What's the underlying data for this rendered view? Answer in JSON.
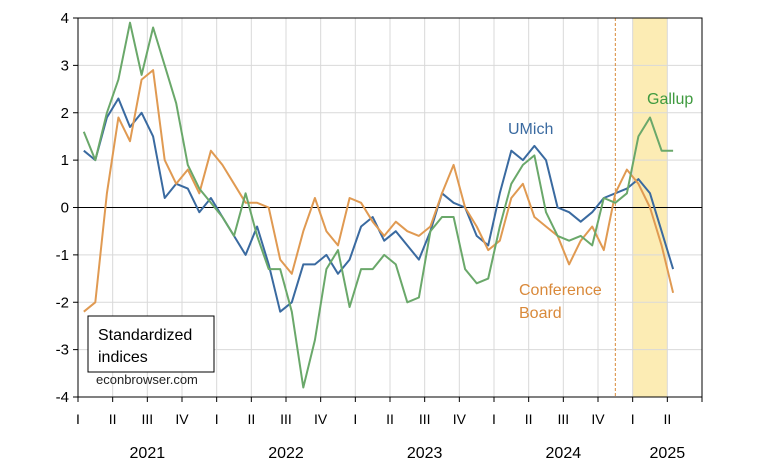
{
  "chart_data": {
    "type": "line",
    "x_unit": "month",
    "x_start": "2021-01",
    "ylim": [
      -4,
      4
    ],
    "yticks": [
      "4",
      "3",
      "2",
      "1",
      "0",
      "-1",
      "-2",
      "-3",
      "-4"
    ],
    "quarter_labels": [
      "I",
      "II",
      "III",
      "IV",
      "I",
      "II",
      "III",
      "IV",
      "I",
      "II",
      "III",
      "IV",
      "I",
      "II",
      "III",
      "IV",
      "I",
      "II"
    ],
    "year_labels": [
      "2021",
      "2022",
      "2023",
      "2024",
      "2025"
    ],
    "grid": true,
    "zero_line": true,
    "shaded_period": {
      "start": "2025-01",
      "end": "2025-04"
    },
    "vertical_marker": "2024-11",
    "legend_box": {
      "line1": "Standardized",
      "line2": "indices"
    },
    "watermark": "econbrowser.com",
    "series": [
      {
        "name": "UMich",
        "color": "#3a6aa0",
        "start": "2021-01",
        "values": [
          1.2,
          1.0,
          1.9,
          2.3,
          1.7,
          2.0,
          1.5,
          0.2,
          0.5,
          0.4,
          -0.1,
          0.2,
          -0.2,
          -0.6,
          -1.0,
          -0.4,
          -1.2,
          -2.2,
          -2.0,
          -1.2,
          -1.2,
          -1.0,
          -1.4,
          -1.1,
          -0.4,
          -0.2,
          -0.7,
          -0.5,
          -0.8,
          -1.1,
          -0.5,
          0.3,
          0.1,
          0.0,
          -0.6,
          -0.8,
          0.3,
          1.2,
          1.0,
          1.3,
          1.0,
          0.0,
          -0.1,
          -0.3,
          -0.1,
          0.2,
          0.3,
          0.4,
          0.6,
          0.3,
          -0.5,
          -1.3
        ]
      },
      {
        "name": "Conference Board",
        "color": "#e09a52",
        "start": "2021-01",
        "values": [
          -2.2,
          -2.0,
          0.3,
          1.9,
          1.4,
          2.7,
          2.9,
          1.0,
          0.5,
          0.8,
          0.3,
          1.2,
          0.9,
          0.5,
          0.1,
          0.1,
          0.0,
          -1.1,
          -1.4,
          -0.5,
          0.2,
          -0.5,
          -0.8,
          0.2,
          0.1,
          -0.3,
          -0.6,
          -0.3,
          -0.5,
          -0.6,
          -0.4,
          0.3,
          0.9,
          0.0,
          -0.4,
          -0.9,
          -0.7,
          0.2,
          0.5,
          -0.2,
          -0.4,
          -0.6,
          -1.2,
          -0.7,
          -0.4,
          -0.9,
          0.3,
          0.8,
          0.5,
          0.0,
          -0.8,
          -1.8
        ]
      },
      {
        "name": "Gallup",
        "color": "#6aa86a",
        "start": "2021-01",
        "values": [
          1.6,
          1.0,
          2.0,
          2.7,
          3.9,
          2.8,
          3.8,
          3.0,
          2.2,
          0.9,
          0.4,
          0.1,
          -0.2,
          -0.6,
          0.3,
          -0.6,
          -1.3,
          -1.3,
          -2.2,
          -3.8,
          -2.8,
          -1.3,
          -0.9,
          -2.1,
          -1.3,
          -1.3,
          -1.0,
          -1.2,
          -2.0,
          -1.9,
          -0.5,
          -0.2,
          -0.2,
          -1.3,
          -1.6,
          -1.5,
          -0.4,
          0.5,
          0.9,
          1.1,
          -0.1,
          -0.6,
          -0.7,
          -0.6,
          -0.8,
          0.2,
          0.1,
          0.3,
          1.5,
          1.9,
          1.2,
          1.2
        ]
      }
    ],
    "series_labels": {
      "umich": "UMich",
      "gallup": "Gallup",
      "conference_line1": "Conference",
      "conference_line2": "Board"
    }
  }
}
